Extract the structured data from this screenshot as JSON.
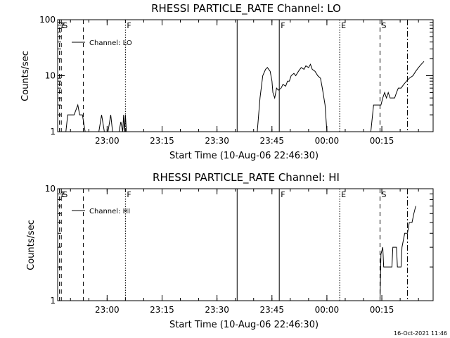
{
  "chart_data": [
    {
      "type": "line",
      "title": "RHESSI PARTICLE_RATE Channel: LO",
      "xlabel": "Start Time (10-Aug-06 22:46:30)",
      "ylabel": "Counts/sec",
      "yscale": "log",
      "ylim": [
        1,
        100
      ],
      "xlim": [
        "22:46:30",
        "00:29:00"
      ],
      "yticks": [
        "1",
        "10",
        "100"
      ],
      "xticks": [
        "23:00",
        "23:15",
        "23:30",
        "23:45",
        "00:00",
        "00:15"
      ],
      "grid": false,
      "legend": "top-left",
      "series": [
        {
          "name": "Channel: LO",
          "points": [
            [
              "22:48:45",
              1
            ],
            [
              "22:49:15",
              2
            ],
            [
              "22:50:00",
              2
            ],
            [
              "22:51:00",
              2
            ],
            [
              "22:52:00",
              3
            ],
            [
              "22:52:30",
              2
            ],
            [
              "22:53:15",
              2
            ],
            [
              "22:54:00",
              1
            ],
            [
              "22:55:30",
              1
            ],
            [
              "22:57:45",
              1
            ],
            [
              "22:58:30",
              2
            ],
            [
              "22:59:15",
              1
            ],
            [
              "23:00:15",
              1
            ],
            [
              "23:01:00",
              2
            ],
            [
              "23:01:30",
              1
            ],
            [
              "23:03:15",
              1
            ],
            [
              "23:03:45",
              1.5
            ],
            [
              "23:04:15",
              1
            ],
            [
              "23:04:30",
              2
            ],
            [
              "23:04:45",
              1
            ],
            [
              "23:05:00",
              2
            ],
            [
              "23:05:15",
              1
            ],
            [
              "23:41:00",
              1
            ],
            [
              "23:41:45",
              4
            ],
            [
              "23:42:30",
              10
            ],
            [
              "23:43:15",
              13
            ],
            [
              "23:43:45",
              14
            ],
            [
              "23:44:30",
              12
            ],
            [
              "23:45:00",
              8
            ],
            [
              "23:45:15",
              5
            ],
            [
              "23:45:45",
              4
            ],
            [
              "23:46:15",
              6
            ],
            [
              "23:46:45",
              5.5
            ],
            [
              "23:47:30",
              6
            ],
            [
              "23:48:00",
              7
            ],
            [
              "23:48:45",
              6.5
            ],
            [
              "23:49:15",
              8
            ],
            [
              "23:49:45",
              8
            ],
            [
              "23:50:15",
              10
            ],
            [
              "23:51:00",
              11
            ],
            [
              "23:51:30",
              10
            ],
            [
              "23:52:15",
              12
            ],
            [
              "23:53:00",
              14
            ],
            [
              "23:53:45",
              13
            ],
            [
              "23:54:15",
              15
            ],
            [
              "23:55:00",
              14
            ],
            [
              "23:55:30",
              16
            ],
            [
              "23:56:00",
              13
            ],
            [
              "23:56:45",
              12
            ],
            [
              "23:57:30",
              10
            ],
            [
              "23:58:15",
              9
            ],
            [
              "23:58:45",
              6
            ],
            [
              "23:59:30",
              3
            ],
            [
              "00:00:00",
              1
            ],
            [
              "00:12:00",
              1
            ],
            [
              "00:12:45",
              3
            ],
            [
              "00:13:45",
              3
            ],
            [
              "00:14:45",
              3
            ],
            [
              "00:15:15",
              4
            ],
            [
              "00:15:45",
              5
            ],
            [
              "00:16:15",
              4
            ],
            [
              "00:16:45",
              5
            ],
            [
              "00:17:15",
              4
            ],
            [
              "00:17:45",
              4
            ],
            [
              "00:18:30",
              4
            ],
            [
              "00:19:00",
              5
            ],
            [
              "00:19:30",
              6
            ],
            [
              "00:20:15",
              6
            ],
            [
              "00:21:00",
              7
            ],
            [
              "00:21:45",
              8
            ],
            [
              "00:22:30",
              9
            ],
            [
              "00:23:30",
              10
            ],
            [
              "00:24:15",
              12
            ],
            [
              "00:25:00",
              14
            ],
            [
              "00:25:45",
              16
            ],
            [
              "00:26:30",
              18
            ]
          ]
        }
      ],
      "markers": [
        {
          "label": "E",
          "time": "22:47:00",
          "style": "dashed"
        },
        {
          "label": "S",
          "time": "22:47:30",
          "style": "dashed"
        },
        {
          "label": "",
          "time": "22:53:30",
          "style": "dashed"
        },
        {
          "label": "F",
          "time": "23:05:00",
          "style": "dotted"
        },
        {
          "label": "",
          "time": "23:35:30",
          "style": "solid"
        },
        {
          "label": "F",
          "time": "23:47:00",
          "style": "solid"
        },
        {
          "label": "E",
          "time": "00:03:30",
          "style": "dotted"
        },
        {
          "label": "S",
          "time": "00:14:30",
          "style": "dashed"
        },
        {
          "label": "",
          "time": "00:22:00",
          "style": "dashdot"
        }
      ]
    },
    {
      "type": "line",
      "title": "RHESSI PARTICLE_RATE Channel: HI",
      "xlabel": "Start Time (10-Aug-06 22:46:30)",
      "ylabel": "Counts/sec",
      "yscale": "log",
      "ylim": [
        1,
        10
      ],
      "xlim": [
        "22:46:30",
        "00:29:00"
      ],
      "yticks": [
        "1",
        "10"
      ],
      "xticks": [
        "23:00",
        "23:15",
        "23:30",
        "23:45",
        "00:00",
        "00:15"
      ],
      "grid": false,
      "legend": "top-left",
      "series": [
        {
          "name": "Channel: HI",
          "points": [
            [
              "00:14:30",
              1
            ],
            [
              "00:14:45",
              2.6
            ],
            [
              "00:15:15",
              3
            ],
            [
              "00:15:30",
              2
            ],
            [
              "00:16:15",
              2
            ],
            [
              "00:17:15",
              2
            ],
            [
              "00:17:45",
              2
            ],
            [
              "00:18:00",
              3
            ],
            [
              "00:19:00",
              3
            ],
            [
              "00:19:15",
              2
            ],
            [
              "00:20:15",
              2
            ],
            [
              "00:20:30",
              3
            ],
            [
              "00:21:15",
              4
            ],
            [
              "00:22:00",
              4
            ],
            [
              "00:22:30",
              5
            ],
            [
              "00:23:15",
              5
            ],
            [
              "00:23:45",
              6
            ],
            [
              "00:24:15",
              7
            ]
          ]
        }
      ],
      "markers": [
        {
          "label": "E",
          "time": "22:47:00",
          "style": "dashed"
        },
        {
          "label": "S",
          "time": "22:47:30",
          "style": "dashed"
        },
        {
          "label": "",
          "time": "22:53:30",
          "style": "dashed"
        },
        {
          "label": "F",
          "time": "23:05:00",
          "style": "dotted"
        },
        {
          "label": "",
          "time": "23:35:30",
          "style": "solid"
        },
        {
          "label": "F",
          "time": "23:47:00",
          "style": "solid"
        },
        {
          "label": "E",
          "time": "00:03:30",
          "style": "dotted"
        },
        {
          "label": "S",
          "time": "00:14:30",
          "style": "dashed"
        },
        {
          "label": "",
          "time": "00:22:00",
          "style": "dashdot"
        }
      ]
    }
  ],
  "footer": {
    "stamp": "16-Oct-2021 11:46"
  }
}
